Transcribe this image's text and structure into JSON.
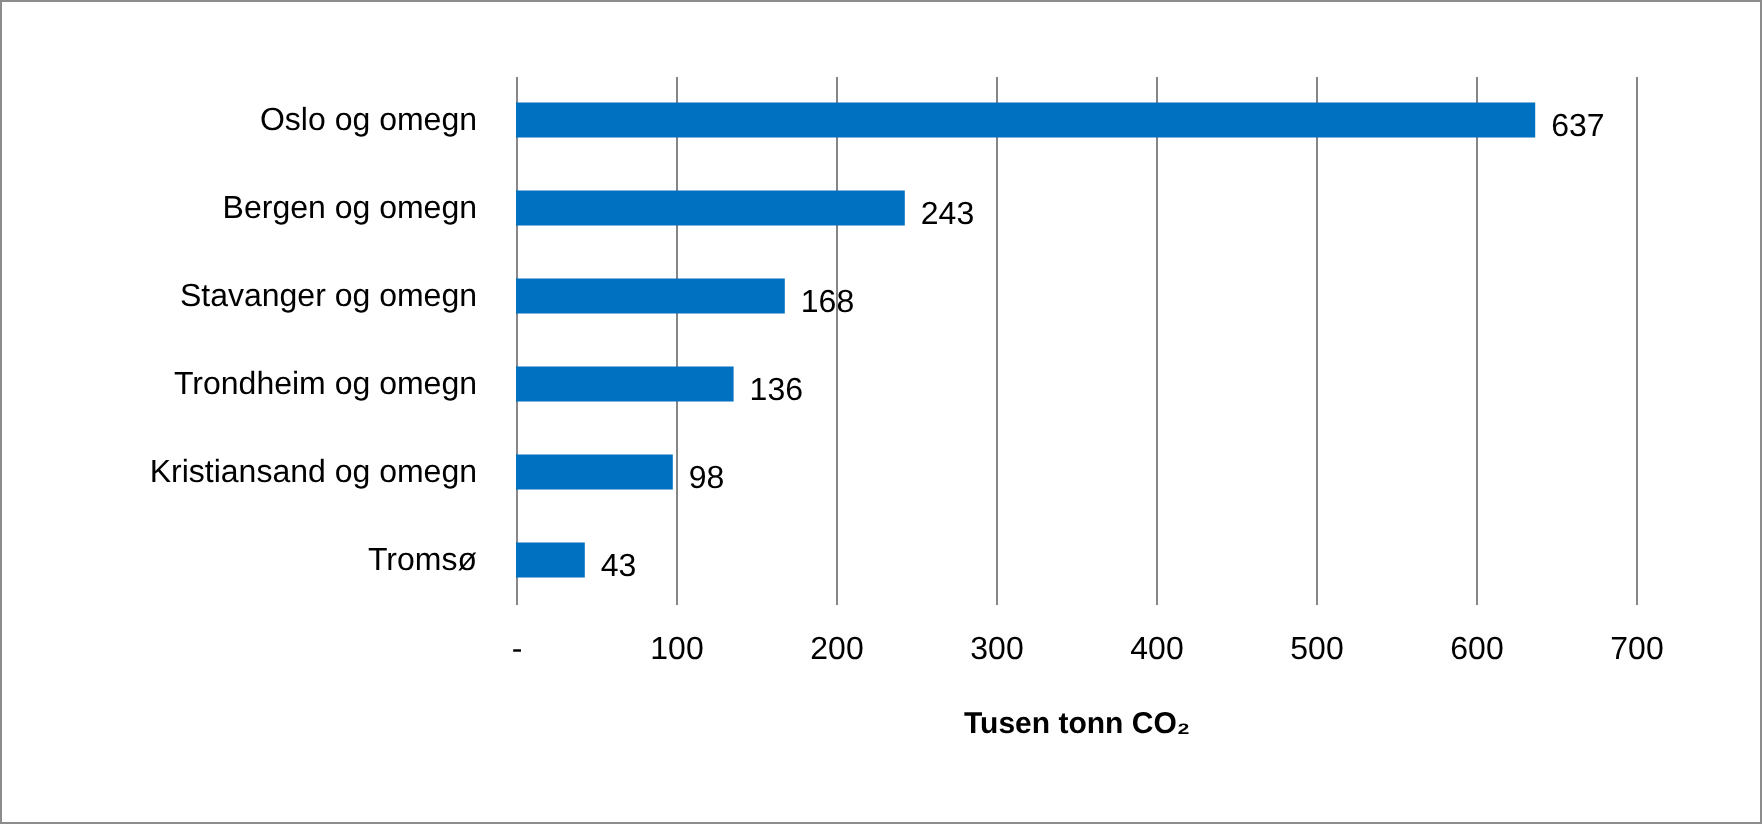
{
  "chart_data": {
    "type": "bar",
    "orientation": "horizontal",
    "categories": [
      "Oslo og omegn",
      "Bergen og omegn",
      "Stavanger og omegn",
      "Trondheim og omegn",
      "Kristiansand og omegn",
      "Tromsø"
    ],
    "values": [
      637,
      243,
      168,
      136,
      98,
      43
    ],
    "color": "#0070c0",
    "xlabel": "Tusen tonn CO₂",
    "xlim": [
      0,
      700
    ],
    "xticks": [
      {
        "value": 0,
        "label": "-"
      },
      100,
      200,
      300,
      400,
      500,
      600,
      700
    ],
    "grid": "x",
    "data_labels": true
  }
}
